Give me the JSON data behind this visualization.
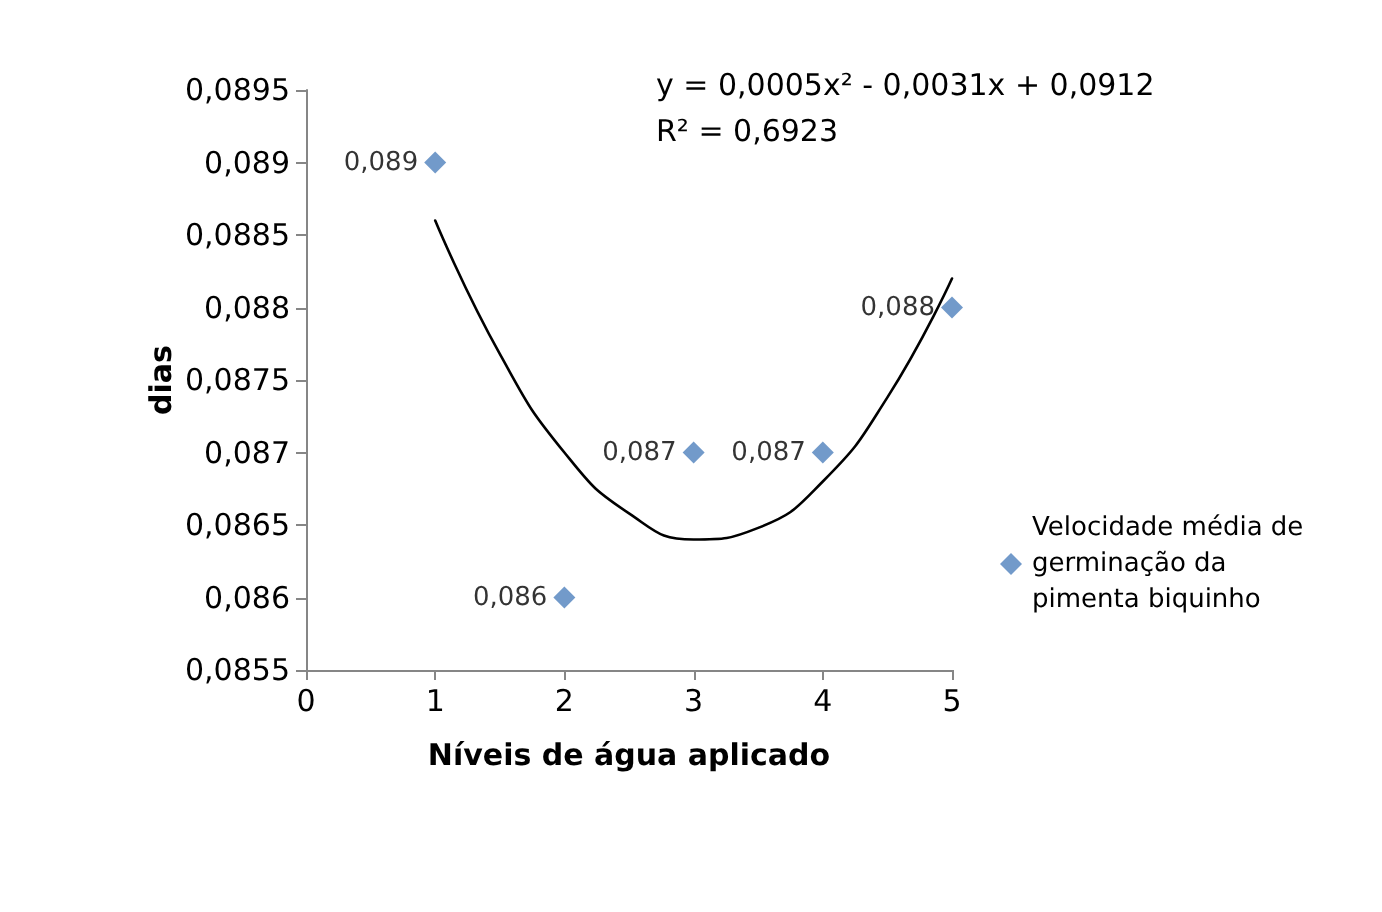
{
  "chart_data": {
    "type": "scatter",
    "xlabel": "Níveis de água aplicado",
    "ylabel": "dias",
    "x": [
      1,
      2,
      3,
      4,
      5
    ],
    "series": [
      {
        "name": "Velocidade média de germinação da pimenta biquinho",
        "color": "#4f81bd",
        "values": [
          0.089,
          0.086,
          0.087,
          0.087,
          0.088
        ],
        "value_labels": [
          "0,089",
          "0,086",
          "0,087",
          "0,087",
          "0,088"
        ],
        "marker": "diamond"
      },
      {
        "type": "line",
        "color": "#000000",
        "x": [
          1,
          1.5,
          2,
          2.5,
          3,
          3.5,
          4,
          4.5,
          5
        ],
        "values": [
          0.0886,
          0.08768,
          0.087,
          0.08658,
          0.0864,
          0.08648,
          0.0868,
          0.08738,
          0.0882
        ],
        "marker": "none",
        "line_style": "solid"
      }
    ],
    "xlim": [
      0,
      5
    ],
    "xticks": [
      0,
      1,
      2,
      3,
      4,
      5
    ],
    "ylim": [
      0.0855,
      0.0895
    ],
    "yticks": [
      {
        "value": 0.0855,
        "label": "0,0855"
      },
      {
        "value": 0.086,
        "label": "0,086"
      },
      {
        "value": 0.0865,
        "label": "0,0865"
      },
      {
        "value": 0.087,
        "label": "0,087"
      },
      {
        "value": 0.0875,
        "label": "0,0875"
      },
      {
        "value": 0.088,
        "label": "0,088"
      },
      {
        "value": 0.0885,
        "label": "0,0885"
      },
      {
        "value": 0.089,
        "label": "0,089"
      },
      {
        "value": 0.0895,
        "label": "0,0895"
      }
    ],
    "annotations": [
      "y = 0,0005x² - 0,0031x + 0,0912",
      "R² = 0,6923"
    ],
    "grid": false,
    "legend": "right"
  }
}
